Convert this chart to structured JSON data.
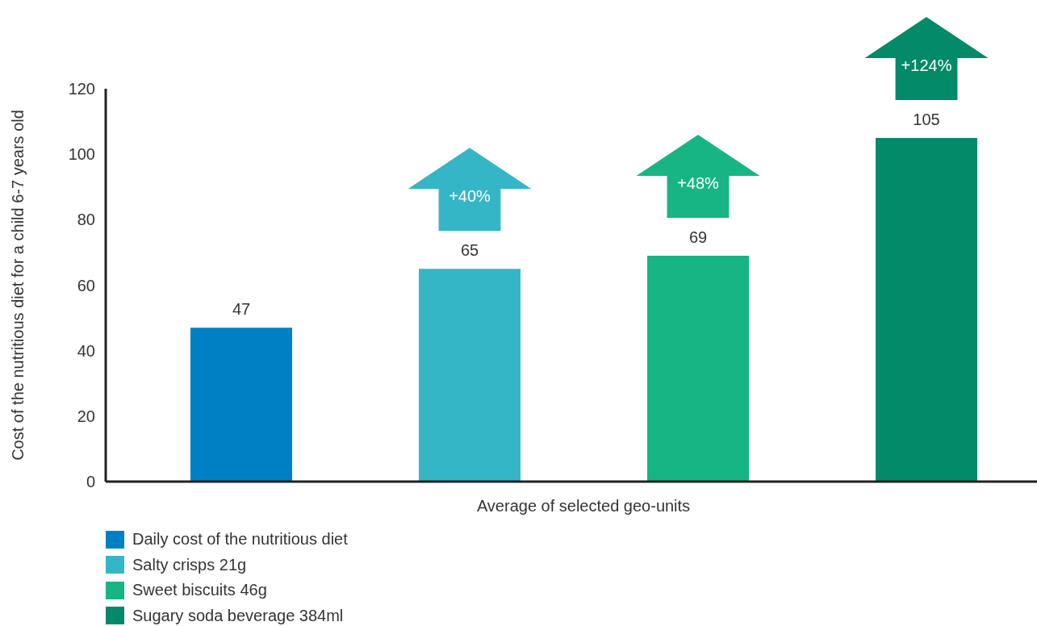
{
  "chart_data": {
    "type": "bar",
    "categories": [
      "Average of selected geo-units"
    ],
    "ylabel": "Cost of the nutritious diet for a child 6-7 years old",
    "series": [
      {
        "name": "Daily cost of the nutritious diet",
        "color": "#0080c4",
        "values": [
          47
        ]
      },
      {
        "name": "Salty crisps 21g",
        "color": "#35b6c6",
        "values": [
          65
        ]
      },
      {
        "name": "Sweet biscuits 46g",
        "color": "#17b484",
        "values": [
          69
        ]
      },
      {
        "name": "Sugary soda beverage 384ml",
        "color": "#038a68",
        "values": [
          105
        ]
      }
    ],
    "ylim": [
      0,
      120
    ],
    "yticks": [
      0,
      20,
      40,
      60,
      80,
      100,
      120
    ],
    "grid": false,
    "legend": "bottom left",
    "data_labels": true,
    "annotations": [
      "+40%",
      "+48%",
      "+124%"
    ]
  }
}
